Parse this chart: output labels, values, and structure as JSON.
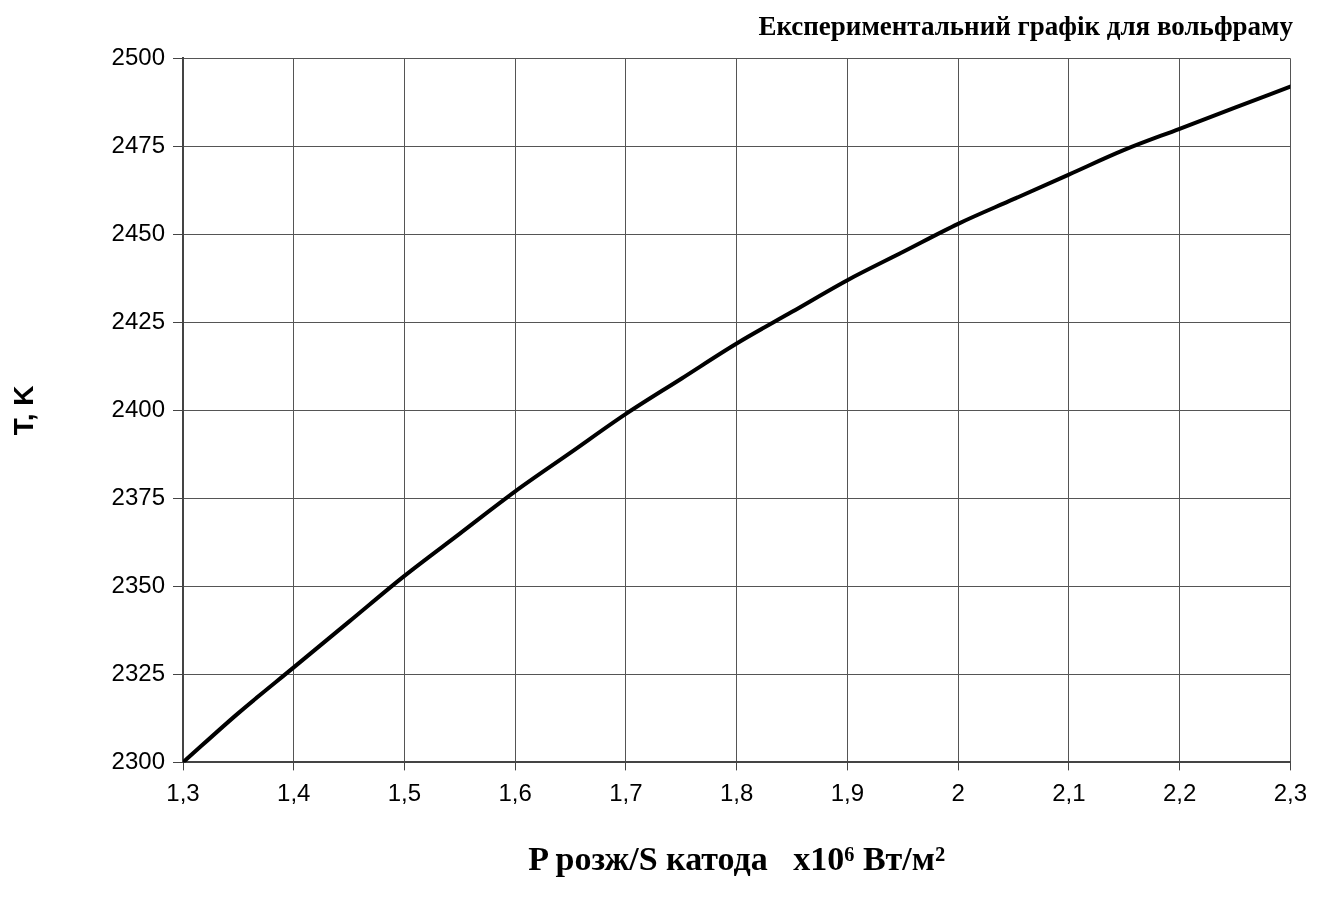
{
  "chart_data": {
    "type": "line",
    "title": "Експериментальний графік для вольфраму",
    "xlabel": "P розж/S катода   x10⁶ Вт/м²",
    "ylabel": "T, K",
    "x": [
      1.3,
      1.35,
      1.4,
      1.45,
      1.5,
      1.55,
      1.6,
      1.65,
      1.7,
      1.75,
      1.8,
      1.85,
      1.9,
      1.95,
      2.0,
      2.05,
      2.1,
      2.15,
      2.2,
      2.25,
      2.3
    ],
    "series": [
      {
        "color": "#000000",
        "values": [
          2300,
          2314,
          2327,
          2340,
          2353,
          2365,
          2377,
          2388,
          2399,
          2409,
          2419,
          2428,
          2437,
          2445,
          2453,
          2460,
          2467,
          2474,
          2480,
          2486,
          2492
        ]
      }
    ],
    "xlim": [
      1.3,
      2.3
    ],
    "xticks": [
      {
        "value": 1.3,
        "label": "1,3"
      },
      {
        "value": 1.4,
        "label": "1,4"
      },
      {
        "value": 1.5,
        "label": "1,5"
      },
      {
        "value": 1.6,
        "label": "1,6"
      },
      {
        "value": 1.7,
        "label": "1,7"
      },
      {
        "value": 1.8,
        "label": "1,8"
      },
      {
        "value": 1.9,
        "label": "1,9"
      },
      2,
      {
        "value": 2.1,
        "label": "2,1"
      },
      {
        "value": 2.2,
        "label": "2,2"
      },
      {
        "value": 2.3,
        "label": "2,3"
      }
    ],
    "ylim": [
      2300,
      2500
    ],
    "yticks": [
      2300,
      2325,
      2350,
      2375,
      2400,
      2425,
      2450,
      2475,
      2500
    ],
    "grid": true,
    "line_style": "solid"
  }
}
